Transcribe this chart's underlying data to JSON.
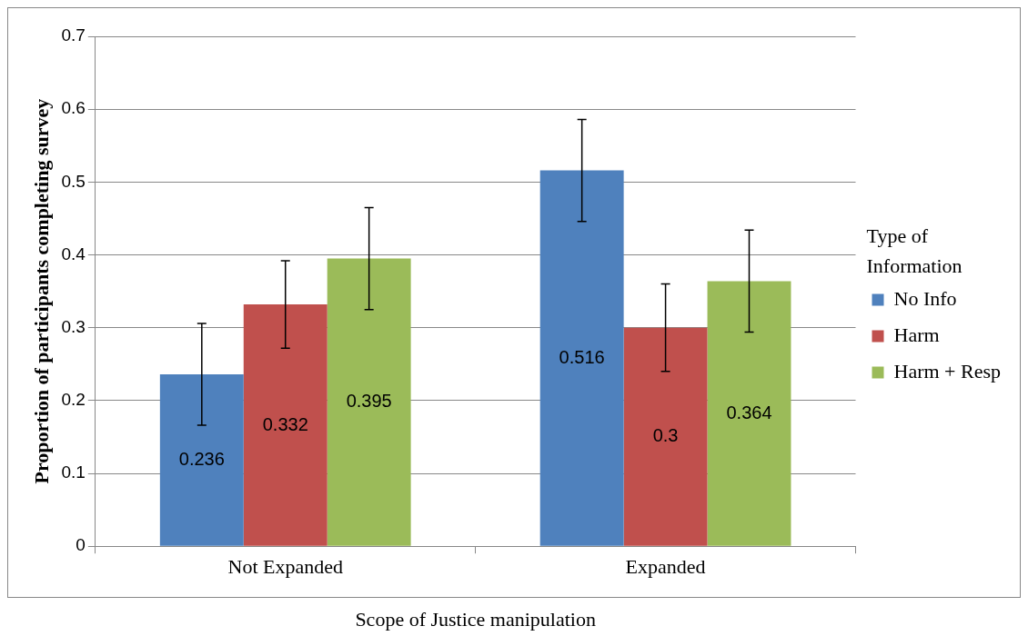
{
  "chart_data": {
    "type": "bar",
    "xlabel": "Scope of Justice manipulation",
    "ylabel": "Proportion of participants completing survey",
    "legend_title": "Type of Information",
    "categories": [
      "Not Expanded",
      "Expanded"
    ],
    "series": [
      {
        "name": "No Info",
        "color": "#4f81bd",
        "values": [
          0.236,
          0.516
        ],
        "errors": [
          0.07,
          0.07
        ]
      },
      {
        "name": "Harm",
        "color": "#c0504d",
        "values": [
          0.332,
          0.3
        ],
        "errors": [
          0.06,
          0.06
        ]
      },
      {
        "name": "Harm + Resp",
        "color": "#9bbb59",
        "values": [
          0.395,
          0.364
        ],
        "errors": [
          0.07,
          0.07
        ]
      }
    ],
    "ylim": [
      0,
      0.7
    ],
    "yticks": [
      0,
      0.1,
      0.2,
      0.3,
      0.4,
      0.5,
      0.6,
      0.7
    ],
    "grid": "y",
    "legend": "right",
    "data_labels": true
  }
}
